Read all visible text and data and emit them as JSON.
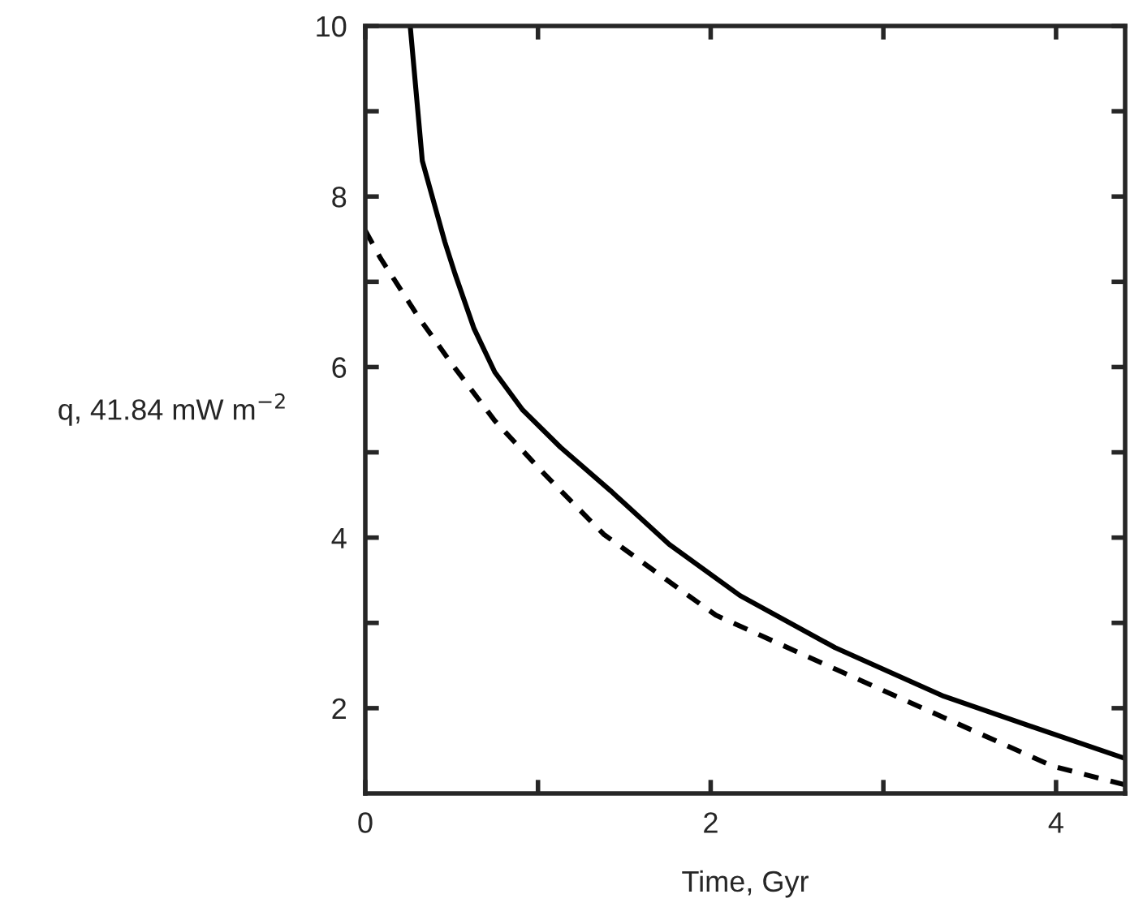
{
  "chart_data": {
    "type": "line",
    "xlabel": "Time, Gyr",
    "ylabel": "q, 41.84 mW m$^{−2}$",
    "series": [
      {
        "color": "#000000",
        "line_style": "solid",
        "x": [
          0.26,
          0.33,
          0.46,
          0.52,
          0.63,
          0.75,
          0.91,
          1.13,
          1.42,
          1.76,
          2.17,
          2.72,
          3.35,
          3.98,
          4.4
        ],
        "values": [
          10,
          8.42,
          7.47,
          7.09,
          6.45,
          5.94,
          5.5,
          5.06,
          4.55,
          3.92,
          3.32,
          2.71,
          2.14,
          1.7,
          1.41
        ]
      },
      {
        "color": "#000000",
        "line_style": "dashed",
        "x": [
          0,
          0.09,
          0.31,
          0.5,
          0.75,
          1.04,
          1.38,
          1.81,
          2.03,
          2.72,
          3.35,
          3.98,
          4.4
        ],
        "values": [
          7.6,
          7.27,
          6.58,
          6.04,
          5.37,
          4.74,
          4.04,
          3.41,
          3.09,
          2.46,
          1.89,
          1.32,
          1.1
        ]
      }
    ],
    "xlim": [
      0,
      4.4
    ],
    "ylim": [
      1,
      10
    ],
    "xticks": [
      0,
      {
        "value": 1,
        "label": null
      },
      2,
      {
        "value": 3,
        "label": null
      },
      4
    ],
    "yticks": [
      2,
      {
        "value": 3,
        "label": null
      },
      4,
      {
        "value": 5,
        "label": null
      },
      6,
      {
        "value": 7,
        "label": null
      },
      8,
      {
        "value": 9,
        "label": null
      },
      10
    ],
    "grid": false,
    "marker": "none"
  }
}
